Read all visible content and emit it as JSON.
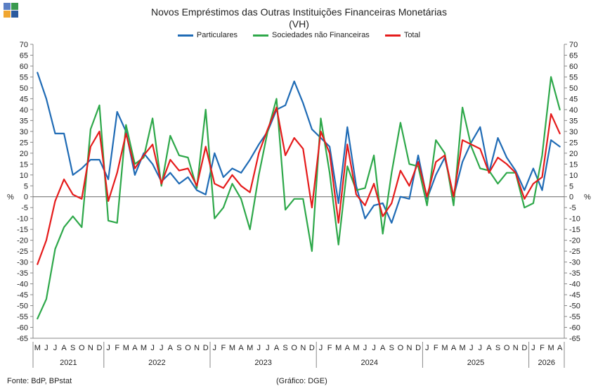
{
  "title": "Novos Empréstimos das Outras Instituições Financeiras Monetárias",
  "subtitle": "(VH)",
  "source": "Fonte: BdP, BPstat",
  "credit": "(Gráfico: DGE)",
  "logo_colors": [
    "#5b7fc4",
    "#3a9a4e",
    "#f0a630",
    "#2b5a9e"
  ],
  "chart_data": {
    "type": "line",
    "ylabel": "%",
    "ylim": [
      -65,
      70
    ],
    "yticks": [
      70,
      65,
      60,
      55,
      50,
      45,
      40,
      35,
      30,
      25,
      20,
      15,
      10,
      5,
      0,
      -5,
      -10,
      -15,
      -20,
      -25,
      -30,
      -35,
      -40,
      -45,
      -50,
      -55,
      -60,
      -65
    ],
    "grid": false,
    "legend_position": "top-center",
    "x": [
      "M",
      "J",
      "J",
      "A",
      "S",
      "O",
      "N",
      "D",
      "J",
      "F",
      "M",
      "A",
      "M",
      "J",
      "J",
      "A",
      "S",
      "O",
      "N",
      "D",
      "J",
      "F",
      "M",
      "A",
      "M",
      "J",
      "J",
      "A",
      "S",
      "O",
      "N",
      "D",
      "J",
      "F",
      "M",
      "A",
      "M",
      "J",
      "J",
      "A",
      "S",
      "O",
      "N",
      "D",
      "J",
      "F",
      "M",
      "A",
      "M",
      "J",
      "J",
      "A",
      "S",
      "O",
      "N",
      "D",
      "J",
      "F",
      "M",
      "A"
    ],
    "years": [
      {
        "label": "2021",
        "start": 0,
        "end": 7
      },
      {
        "label": "2022",
        "start": 8,
        "end": 19
      },
      {
        "label": "2023",
        "start": 20,
        "end": 31
      },
      {
        "label": "2024",
        "start": 32,
        "end": 43
      },
      {
        "label": "2025",
        "start": 44,
        "end": 55
      },
      {
        "label": "2026",
        "start": 56,
        "end": 59
      }
    ],
    "series": [
      {
        "name": "Particulares",
        "color": "#1f6bb5",
        "values": [
          57,
          45,
          29,
          29,
          10,
          13,
          17,
          17,
          8,
          39,
          30,
          10,
          20,
          15,
          7,
          11,
          6,
          9,
          3,
          1,
          20,
          9,
          13,
          11,
          17,
          24,
          30,
          40,
          42,
          53,
          43,
          31,
          27,
          23,
          -3,
          32,
          5,
          -10,
          -4,
          -3,
          -12,
          0,
          -1,
          19,
          -1,
          10,
          18,
          0,
          16,
          25,
          32,
          11,
          27,
          18,
          12,
          3,
          13,
          3,
          26,
          23
        ]
      },
      {
        "name": "Sociedades não Financeiras",
        "color": "#2ea84a",
        "values": [
          -56,
          -47,
          -24,
          -14,
          -9,
          -14,
          31,
          42,
          -11,
          -12,
          33,
          15,
          18,
          36,
          5,
          28,
          19,
          18,
          4,
          40,
          -10,
          -5,
          6,
          -1,
          -15,
          10,
          30,
          45,
          -6,
          -1,
          -1,
          -25,
          36,
          11,
          -22,
          14,
          3,
          4,
          19,
          -17,
          11,
          34,
          15,
          14,
          -4,
          26,
          20,
          -4,
          41,
          23,
          13,
          12,
          6,
          11,
          11,
          -5,
          -3,
          19,
          55,
          40
        ]
      },
      {
        "name": "Total",
        "color": "#e51b1b",
        "values": [
          -31,
          -20,
          -2,
          8,
          1,
          -1,
          23,
          30,
          -2,
          11,
          29,
          13,
          19,
          24,
          6,
          17,
          12,
          13,
          5,
          23,
          6,
          4,
          10,
          5,
          2,
          20,
          31,
          41,
          19,
          27,
          22,
          -5,
          30,
          20,
          -12,
          24,
          1,
          -4,
          6,
          -9,
          -3,
          12,
          5,
          16,
          0,
          16,
          19,
          0,
          26,
          24,
          22,
          11,
          18,
          15,
          11,
          -1,
          6,
          9,
          38,
          29
        ]
      }
    ]
  }
}
